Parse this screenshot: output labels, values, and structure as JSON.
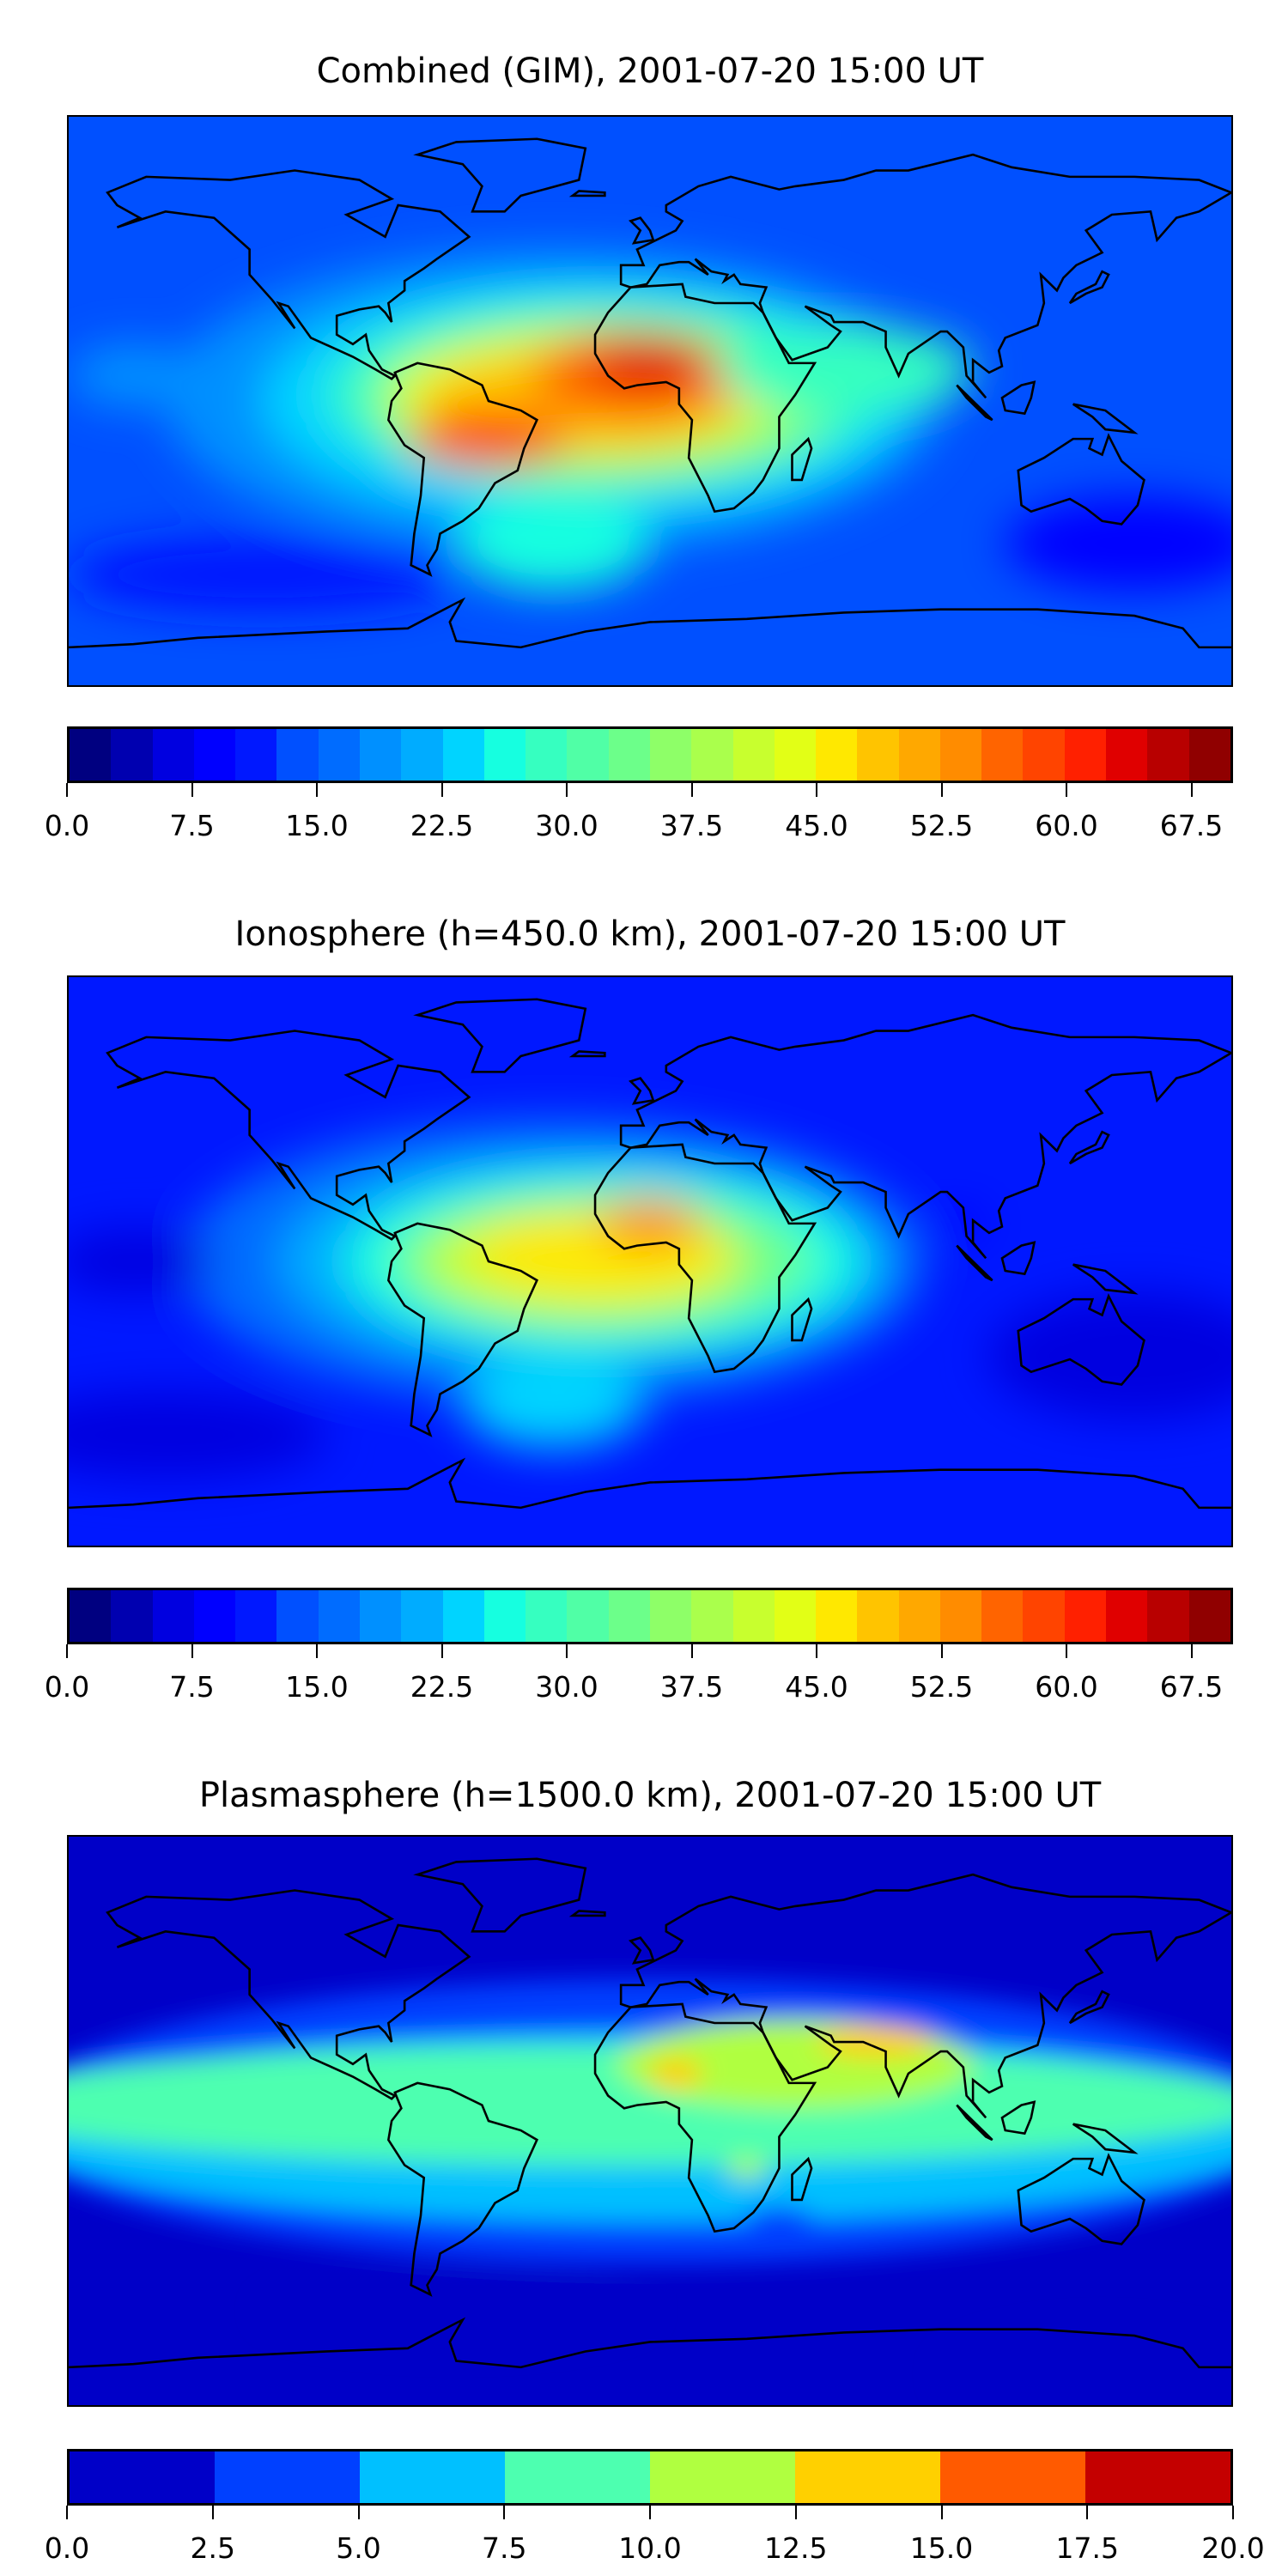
{
  "chart_data": [
    {
      "type": "heatmap",
      "title": "Combined (GIM), 2001-07-20 15:00 UT",
      "projection": "plate carree, global",
      "colormap": "jet",
      "levels": {
        "min": 0,
        "max": 70,
        "step": 2.5
      },
      "colorbar_ticks": [
        "0.0",
        "7.5",
        "15.0",
        "22.5",
        "30.0",
        "37.5",
        "45.0",
        "52.5",
        "60.0",
        "67.5"
      ],
      "features": [
        {
          "desc": "peak",
          "lon": 0,
          "lat": 12,
          "value": 67
        },
        {
          "desc": "secondary peak",
          "lon": -50,
          "lat": -12,
          "value": 60
        },
        {
          "desc": "minimum",
          "lon": 150,
          "lat": -45,
          "value": 7
        }
      ]
    },
    {
      "type": "heatmap",
      "title": "Ionosphere  (h=450.0 km), 2001-07-20 15:00 UT",
      "projection": "plate carree, global",
      "colormap": "jet",
      "levels": {
        "min": 0,
        "max": 70,
        "step": 2.5
      },
      "colorbar_ticks": [
        "0.0",
        "7.5",
        "15.0",
        "22.5",
        "30.0",
        "37.5",
        "45.0",
        "52.5",
        "60.0",
        "67.5"
      ],
      "features": [
        {
          "desc": "peak",
          "lon": 0,
          "lat": 12,
          "value": 55
        },
        {
          "desc": "secondary peak",
          "lon": -45,
          "lat": -10,
          "value": 47
        },
        {
          "desc": "minimum",
          "lon": 150,
          "lat": -30,
          "value": 3
        }
      ]
    },
    {
      "type": "heatmap",
      "title": "Plasmasphere (h=1500.0 km), 2001-07-20 15:00 UT",
      "projection": "plate carree, global",
      "colormap": "jet",
      "levels": {
        "min": 0,
        "max": 20,
        "step": 2.5
      },
      "colorbar_ticks": [
        "0.0",
        "2.5",
        "5.0",
        "7.5",
        "10.0",
        "12.5",
        "15.0",
        "17.5",
        "20.0"
      ],
      "features": [
        {
          "desc": "peak",
          "lon": 70,
          "lat": 25,
          "value": 13
        },
        {
          "desc": "peak",
          "lon": 8,
          "lat": 15,
          "value": 13
        },
        {
          "desc": "minimum",
          "lon": -60,
          "lat": -60,
          "value": 1
        }
      ]
    }
  ],
  "colors": {
    "jet28": [
      "#000080",
      "#0000b0",
      "#0000e0",
      "#0000ff",
      "#0018ff",
      "#0050ff",
      "#006cff",
      "#0090ff",
      "#00acff",
      "#00d4ff",
      "#16ffe0",
      "#36ffc0",
      "#50ffa6",
      "#6cff8a",
      "#8eff68",
      "#aaff4c",
      "#c8ff2e",
      "#e2ff16",
      "#ffe800",
      "#ffc400",
      "#ffa800",
      "#ff8c00",
      "#ff6400",
      "#ff4400",
      "#ff2000",
      "#e00000",
      "#b80000",
      "#900000"
    ],
    "jet8": [
      "#0000c8",
      "#0040ff",
      "#00c0ff",
      "#4dffb0",
      "#b0ff40",
      "#ffd000",
      "#ff5a00",
      "#c40000"
    ]
  }
}
